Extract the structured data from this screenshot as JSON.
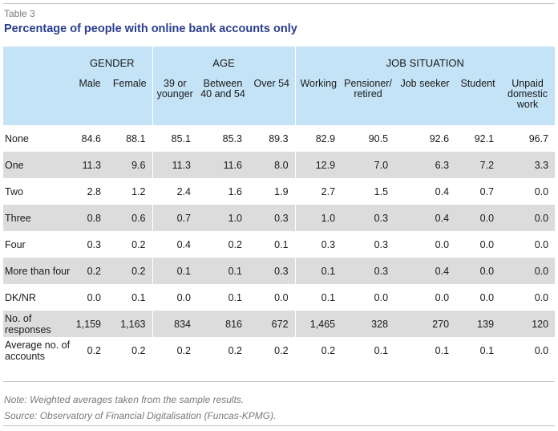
{
  "caption": "Table 3",
  "title": "Percentage of people with online bank accounts only",
  "groups": {
    "gender": "GENDER",
    "age": "AGE",
    "job": "JOB SITUATION"
  },
  "columns": [
    "Male",
    "Female",
    "39 or younger",
    "Between 40 and 54",
    "Over 54",
    "Working",
    "Pensioner/ retired",
    "Job seeker",
    "Student",
    "Unpaid domestic work"
  ],
  "rows": [
    {
      "label": "None",
      "values": [
        "84.6",
        "88.1",
        "85.1",
        "85.3",
        "89.3",
        "82.9",
        "90.5",
        "92.6",
        "92.1",
        "96.7"
      ]
    },
    {
      "label": "One",
      "values": [
        "11.3",
        "9.6",
        "11.3",
        "11.6",
        "8.0",
        "12.9",
        "7.0",
        "6.3",
        "7.2",
        "3.3"
      ]
    },
    {
      "label": "Two",
      "values": [
        "2.8",
        "1.2",
        "2.4",
        "1.6",
        "1.9",
        "2.7",
        "1.5",
        "0.4",
        "0.7",
        "0.0"
      ]
    },
    {
      "label": "Three",
      "values": [
        "0.8",
        "0.6",
        "0.7",
        "1.0",
        "0.3",
        "1.0",
        "0.3",
        "0.4",
        "0.0",
        "0.0"
      ]
    },
    {
      "label": "Four",
      "values": [
        "0.3",
        "0.2",
        "0.4",
        "0.2",
        "0.1",
        "0.3",
        "0.3",
        "0.0",
        "0.0",
        "0.0"
      ]
    },
    {
      "label": "More than four",
      "values": [
        "0.2",
        "0.2",
        "0.1",
        "0.1",
        "0.3",
        "0.1",
        "0.3",
        "0.4",
        "0.0",
        "0.0"
      ]
    },
    {
      "label": "DK/NR",
      "values": [
        "0.0",
        "0.1",
        "0.0",
        "0.1",
        "0.0",
        "0.1",
        "0.0",
        "0.0",
        "0.0",
        "0.0"
      ]
    },
    {
      "label": "No. of responses",
      "values": [
        "1,159",
        "1,163",
        "834",
        "816",
        "672",
        "1,465",
        "328",
        "270",
        "139",
        "120"
      ]
    },
    {
      "label": "Average no. of accounts",
      "values": [
        "0.2",
        "0.2",
        "0.2",
        "0.2",
        "0.2",
        "0.2",
        "0.1",
        "0.1",
        "0.1",
        "0.0"
      ]
    }
  ],
  "notes": {
    "note": "Note: Weighted averages taken from the sample results.",
    "source": "Source: Observatory of Financial Digitalisation (Funcas-KPMG)."
  }
}
